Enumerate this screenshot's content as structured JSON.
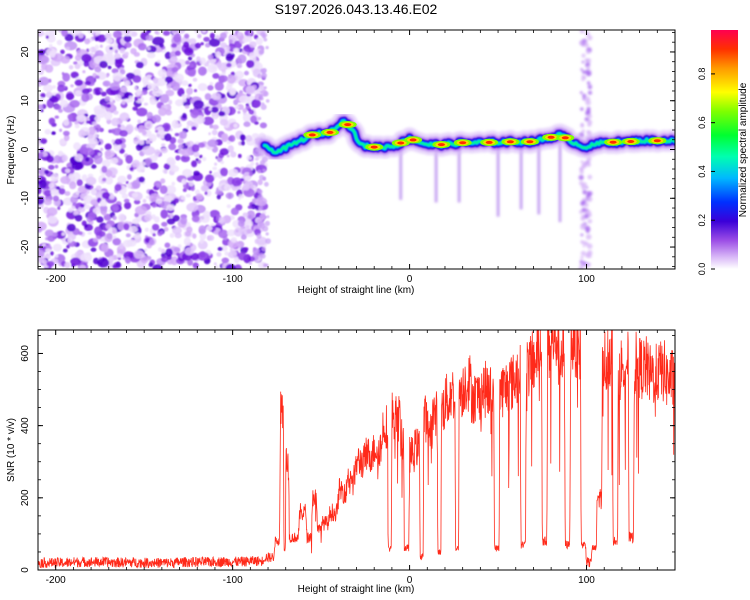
{
  "figure": {
    "title": "S197.2026.043.13.46.E02"
  },
  "chart_data": [
    {
      "type": "heatmap",
      "title": "S197.2026.043.13.46.E02",
      "xlabel": "Height of straight line (km)",
      "ylabel": "Frequency (Hz)",
      "xlim": [
        -210,
        150
      ],
      "ylim": [
        -24.5,
        24.5
      ],
      "xticks": [
        -200,
        -100,
        0,
        100
      ],
      "xtick_labels": [
        "-200",
        "-100",
        "0",
        "100"
      ],
      "yticks": [
        -20,
        -10,
        0,
        10,
        20
      ],
      "ytick_labels": [
        "-20",
        "-10",
        "0",
        "10",
        "20"
      ],
      "colorbar": {
        "label": "Normalized spectral amplitude",
        "range": [
          0,
          0.98
        ],
        "ticks": [
          0.0,
          0.2,
          0.4,
          0.6,
          0.8
        ],
        "tick_labels": [
          "0.0",
          "0.2",
          "0.4",
          "0.6",
          "0.8"
        ],
        "colors": [
          "#ffffff",
          "#b15cf3",
          "#5000c8",
          "#0000ff",
          "#00d8ff",
          "#00ff60",
          "#80ff00",
          "#ffff00",
          "#ff8000",
          "#ff0000"
        ]
      },
      "noise_region_x": [
        -210,
        -82
      ],
      "signal_trace": {
        "description_points_x": [
          -82,
          -75,
          -65,
          -55,
          -45,
          -38,
          -33,
          -28,
          -22,
          -15,
          -8,
          0,
          10,
          20,
          30,
          40,
          50,
          60,
          70,
          80,
          85,
          95,
          100,
          110,
          120,
          130,
          140,
          150
        ],
        "frequency_hz": [
          0.5,
          -0.5,
          1.2,
          3.0,
          3.5,
          6.0,
          4.5,
          1.0,
          0.5,
          0.5,
          0.8,
          2.2,
          1.0,
          1.0,
          1.4,
          1.4,
          1.5,
          1.6,
          1.6,
          2.5,
          3.0,
          1.0,
          0.5,
          1.5,
          1.5,
          1.8,
          1.8,
          1.8
        ]
      },
      "hotspots_x": [
        -55,
        -45,
        -35,
        -20,
        -5,
        2,
        18,
        30,
        45,
        57,
        68,
        80,
        88,
        115,
        125,
        140
      ],
      "vertical_streaks_x": [
        -5,
        15,
        28,
        50,
        63,
        73,
        85,
        98,
        101
      ]
    },
    {
      "type": "line",
      "xlabel": "Height of straight line (km)",
      "ylabel": "SNR (10 * v/v)",
      "xlim": [
        -210,
        150
      ],
      "ylim": [
        0,
        665
      ],
      "xticks": [
        -200,
        -100,
        0,
        100
      ],
      "xtick_labels": [
        "-200",
        "-100",
        "0",
        "100"
      ],
      "yticks": [
        0,
        200,
        400,
        600
      ],
      "ytick_labels": [
        "0",
        "200",
        "400",
        "600"
      ],
      "series_color": "#ff2a1a",
      "series": [
        {
          "name": "SNR",
          "x": [
            -210,
            -190,
            -170,
            -150,
            -130,
            -110,
            -90,
            -82,
            -76,
            -73,
            -71,
            -70,
            -68,
            -62,
            -58,
            -55,
            -52,
            -50,
            -45,
            -40,
            -35,
            -30,
            -25,
            -20,
            -15,
            -12,
            -10,
            -8,
            -5,
            -3,
            0,
            3,
            6,
            8,
            10,
            13,
            16,
            18,
            20,
            23,
            26,
            28,
            31,
            35,
            40,
            45,
            48,
            51,
            55,
            60,
            63,
            66,
            69,
            72,
            75,
            78,
            81,
            84,
            88,
            91,
            94,
            97,
            100,
            103,
            106,
            109,
            112,
            115,
            118,
            121,
            124,
            127,
            130,
            135,
            140,
            145,
            150
          ],
          "y": [
            20,
            22,
            21,
            20,
            22,
            23,
            25,
            35,
            80,
            450,
            60,
            300,
            90,
            160,
            90,
            200,
            110,
            130,
            160,
            220,
            260,
            300,
            320,
            340,
            400,
            60,
            430,
            420,
            360,
            60,
            320,
            340,
            40,
            420,
            390,
            430,
            50,
            450,
            470,
            490,
            60,
            500,
            520,
            480,
            500,
            490,
            60,
            500,
            520,
            540,
            70,
            560,
            580,
            620,
            80,
            620,
            640,
            600,
            70,
            640,
            620,
            70,
            20,
            60,
            200,
            580,
            600,
            80,
            560,
            580,
            90,
            570,
            560,
            540,
            550,
            530,
            540
          ]
        }
      ]
    }
  ]
}
